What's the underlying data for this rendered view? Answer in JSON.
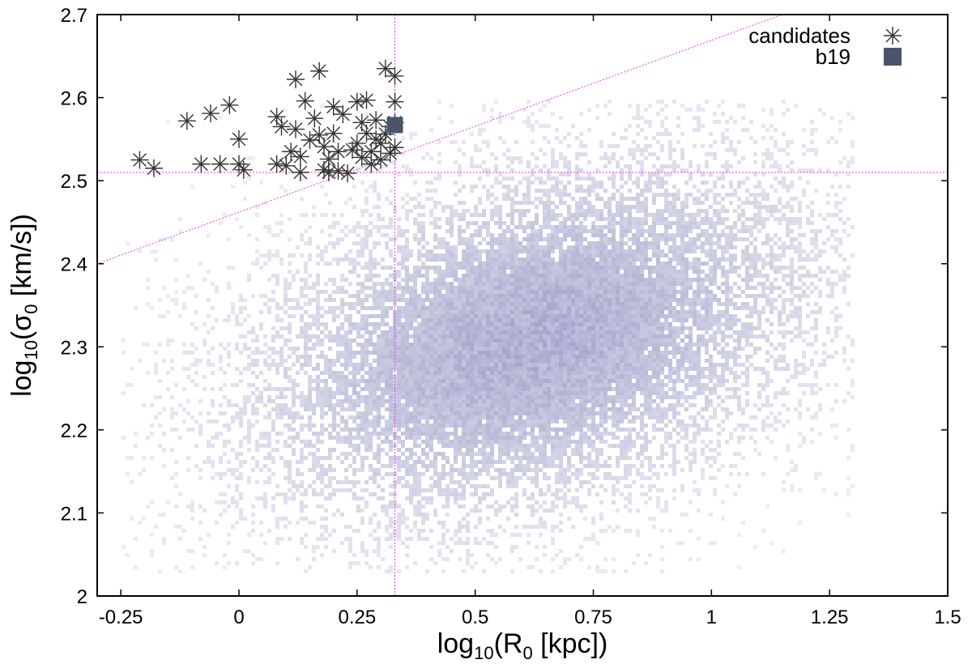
{
  "chart_data": {
    "type": "scatter",
    "xlabel": {
      "pre": "log",
      "sub": "10",
      "mid": "(R",
      "sub2": "0",
      "post": " [kpc])"
    },
    "ylabel": {
      "pre": "log",
      "sub": "10",
      "mid": "(σ",
      "sub2": "0",
      "post": " [km/s])"
    },
    "xlim": [
      -0.3,
      1.5
    ],
    "ylim": [
      2.0,
      2.7
    ],
    "x_ticks": [
      -0.25,
      0,
      0.25,
      0.5,
      0.75,
      1,
      1.25,
      1.5
    ],
    "x_tick_labels": [
      "-0.25",
      "0",
      "0.25",
      "0.5",
      "0.75",
      "1",
      "1.25",
      "1.5"
    ],
    "y_ticks": [
      2,
      2.1,
      2.2,
      2.3,
      2.4,
      2.5,
      2.6,
      2.7
    ],
    "y_tick_labels": [
      "2",
      "2.1",
      "2.2",
      "2.3",
      "2.4",
      "2.5",
      "2.6",
      "2.7"
    ],
    "grid": false,
    "legend_position": "top-right",
    "density_cloud": {
      "color": "#9c9cc8",
      "center": [
        0.62,
        2.31
      ],
      "spread_x": 0.28,
      "spread_y": 0.1,
      "correlation": 0.35,
      "x_range": [
        -0.25,
        1.3
      ],
      "y_range": [
        2.03,
        2.6
      ]
    },
    "reference_lines": {
      "color": "#e040e0",
      "vertical_x": 0.33,
      "horizontal_y": 2.51,
      "diagonal": {
        "x1": -0.3,
        "y1": 2.4,
        "x2": 1.15,
        "y2": 2.7
      }
    },
    "series": [
      {
        "name": "candidates",
        "marker": "asterisk",
        "color": "#333333",
        "points": [
          [
            -0.21,
            2.525
          ],
          [
            -0.18,
            2.515
          ],
          [
            -0.11,
            2.572
          ],
          [
            -0.06,
            2.581
          ],
          [
            -0.02,
            2.591
          ],
          [
            -0.08,
            2.52
          ],
          [
            -0.04,
            2.52
          ],
          [
            0.0,
            2.55
          ],
          [
            0.0,
            2.52
          ],
          [
            0.01,
            2.513
          ],
          [
            0.08,
            2.52
          ],
          [
            0.08,
            2.577
          ],
          [
            0.09,
            2.565
          ],
          [
            0.1,
            2.518
          ],
          [
            0.11,
            2.535
          ],
          [
            0.12,
            2.622
          ],
          [
            0.12,
            2.562
          ],
          [
            0.13,
            2.529
          ],
          [
            0.13,
            2.51
          ],
          [
            0.14,
            2.596
          ],
          [
            0.15,
            2.549
          ],
          [
            0.16,
            2.575
          ],
          [
            0.17,
            2.632
          ],
          [
            0.17,
            2.555
          ],
          [
            0.18,
            2.541
          ],
          [
            0.18,
            2.513
          ],
          [
            0.19,
            2.526
          ],
          [
            0.19,
            2.51
          ],
          [
            0.2,
            2.589
          ],
          [
            0.2,
            2.557
          ],
          [
            0.21,
            2.535
          ],
          [
            0.21,
            2.512
          ],
          [
            0.22,
            2.58
          ],
          [
            0.23,
            2.509
          ],
          [
            0.24,
            2.537
          ],
          [
            0.25,
            2.595
          ],
          [
            0.25,
            2.545
          ],
          [
            0.26,
            2.57
          ],
          [
            0.26,
            2.528
          ],
          [
            0.27,
            2.557
          ],
          [
            0.27,
            2.597
          ],
          [
            0.28,
            2.52
          ],
          [
            0.28,
            2.535
          ],
          [
            0.29,
            2.55
          ],
          [
            0.29,
            2.573
          ],
          [
            0.3,
            2.525
          ],
          [
            0.3,
            2.545
          ],
          [
            0.31,
            2.556
          ],
          [
            0.31,
            2.635
          ],
          [
            0.32,
            2.533
          ],
          [
            0.33,
            2.626
          ],
          [
            0.33,
            2.57
          ],
          [
            0.33,
            2.595
          ],
          [
            0.33,
            2.54
          ],
          [
            0.32,
            2.565
          ]
        ]
      },
      {
        "name": "b19",
        "marker": "square",
        "color": "#48556a",
        "points": [
          [
            0.33,
            2.567
          ]
        ]
      }
    ]
  }
}
